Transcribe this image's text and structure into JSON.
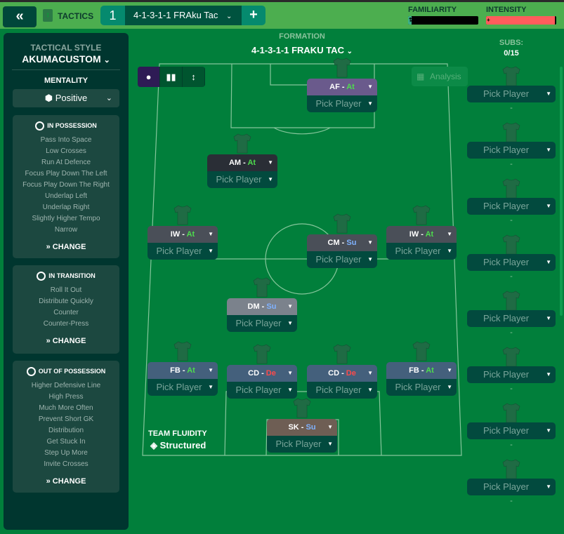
{
  "header": {
    "back_icon": "double-chevron-left",
    "tactics_label": "TACTICS",
    "tactic_slot": "1",
    "tactic_name": "4-1-3-1-1 FRAku Tac",
    "add_label": "+",
    "familiarity_label": "FAMILIARITY",
    "familiarity_level": 0.05,
    "intensity_label": "INTENSITY",
    "intensity_level": 0.98,
    "colors": {
      "bar": "#4cae4f",
      "intensity": "#ff5c5c",
      "familiarity": "#3bb08a"
    }
  },
  "sidebar": {
    "tactical_style_label": "TACTICAL STYLE",
    "tactical_style": "AKUMACUSTOM",
    "mentality_label": "MENTALITY",
    "mentality": "Positive",
    "sections": [
      {
        "title": "IN POSSESSION",
        "items": [
          "Pass Into Space",
          "Low Crosses",
          "Run At Defence",
          "Focus Play Down The Left",
          "Focus Play Down The Right",
          "Underlap Left",
          "Underlap Right",
          "Slightly Higher Tempo",
          "Narrow"
        ],
        "change": "CHANGE"
      },
      {
        "title": "IN TRANSITION",
        "items": [
          "Roll It Out",
          "Distribute Quickly",
          "Counter",
          "Counter-Press"
        ],
        "change": "CHANGE"
      },
      {
        "title": "OUT OF POSSESSION",
        "items": [
          "Higher Defensive Line",
          "High Press",
          "Much More Often",
          "Prevent Short GK",
          "Distribution",
          "Get Stuck In",
          "Step Up More",
          "Invite Crosses"
        ],
        "change": "CHANGE"
      }
    ]
  },
  "formation": {
    "label": "FORMATION",
    "value": "4-1-3-1-1 FRAKU TAC"
  },
  "subs": {
    "label": "SUBS:",
    "count": "0/15",
    "slots": [
      {
        "player": "Pick Player",
        "dash": "-"
      },
      {
        "player": "Pick Player",
        "dash": "-"
      },
      {
        "player": "Pick Player",
        "dash": "-"
      },
      {
        "player": "Pick Player",
        "dash": "-"
      },
      {
        "player": "Pick Player",
        "dash": "-"
      },
      {
        "player": "Pick Player",
        "dash": "-"
      },
      {
        "player": "Pick Player",
        "dash": "-"
      },
      {
        "player": "Pick Player",
        "dash": "-"
      }
    ]
  },
  "analysis_label": "Analysis",
  "positions": [
    {
      "role": "AF",
      "duty": "At",
      "player": "Pick Player"
    },
    {
      "role": "AM",
      "duty": "At",
      "player": "Pick Player"
    },
    {
      "role": "IW",
      "duty": "At",
      "player": "Pick Player"
    },
    {
      "role": "CM",
      "duty": "Su",
      "player": "Pick Player"
    },
    {
      "role": "IW",
      "duty": "At",
      "player": "Pick Player"
    },
    {
      "role": "DM",
      "duty": "Su",
      "player": "Pick Player"
    },
    {
      "role": "FB",
      "duty": "At",
      "player": "Pick Player"
    },
    {
      "role": "CD",
      "duty": "De",
      "player": "Pick Player"
    },
    {
      "role": "CD",
      "duty": "De",
      "player": "Pick Player"
    },
    {
      "role": "FB",
      "duty": "At",
      "player": "Pick Player"
    },
    {
      "role": "SK",
      "duty": "Su",
      "player": "Pick Player"
    }
  ],
  "fluidity": {
    "label": "TEAM FLUIDITY",
    "value": "Structured"
  }
}
